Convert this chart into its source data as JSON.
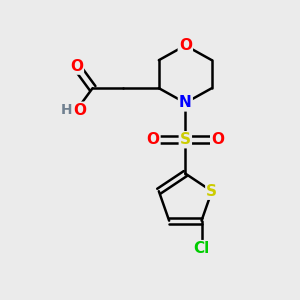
{
  "background_color": "#ebebeb",
  "bond_color": "#000000",
  "bond_width": 1.8,
  "atom_colors": {
    "O": "#ff0000",
    "N": "#0000ff",
    "S_sulfonyl": "#cccc00",
    "S_thio": "#cccc00",
    "Cl": "#00cc00",
    "C": "#000000",
    "H": "#708090"
  },
  "font_size": 10,
  "figsize": [
    3.0,
    3.0
  ],
  "dpi": 100,
  "xlim": [
    0,
    10
  ],
  "ylim": [
    0,
    10
  ]
}
